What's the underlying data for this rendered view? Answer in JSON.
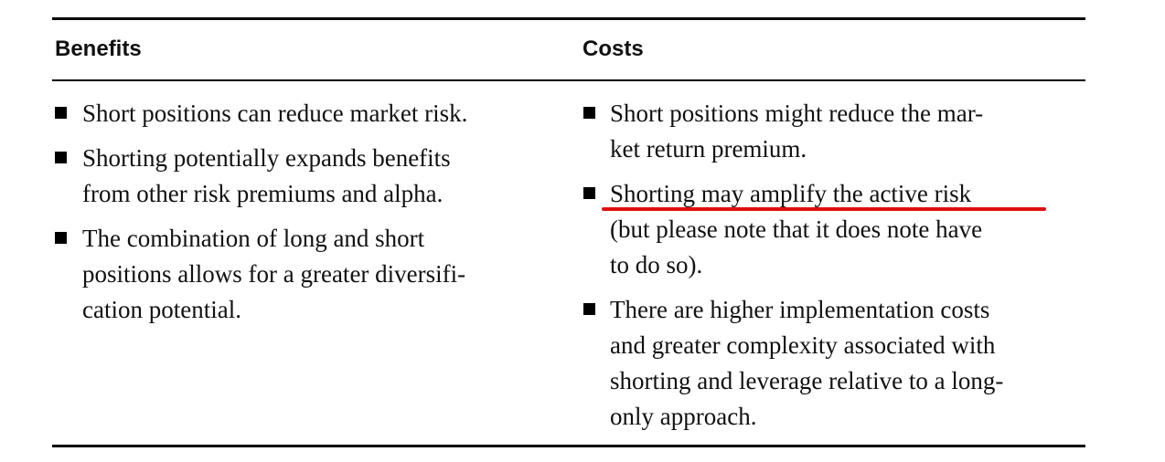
{
  "table": {
    "headers": [
      "Benefits",
      "Costs"
    ],
    "columns": [
      [
        [
          "Short positions can reduce market risk."
        ],
        [
          "Shorting potentially expands benefits",
          "from other risk premiums and alpha."
        ],
        [
          "The combination of long and short",
          "positions allows for a greater diversifi-",
          "cation potential."
        ]
      ],
      [
        [
          "Short positions might reduce the mar-",
          "ket return premium."
        ],
        [
          "Shorting may amplify the active risk",
          "(but please note that it does note have",
          "to do so)."
        ],
        [
          "There are higher implementation costs",
          "and greater complexity associated with",
          "shorting and leverage relative to a long-",
          "only approach."
        ]
      ]
    ]
  }
}
